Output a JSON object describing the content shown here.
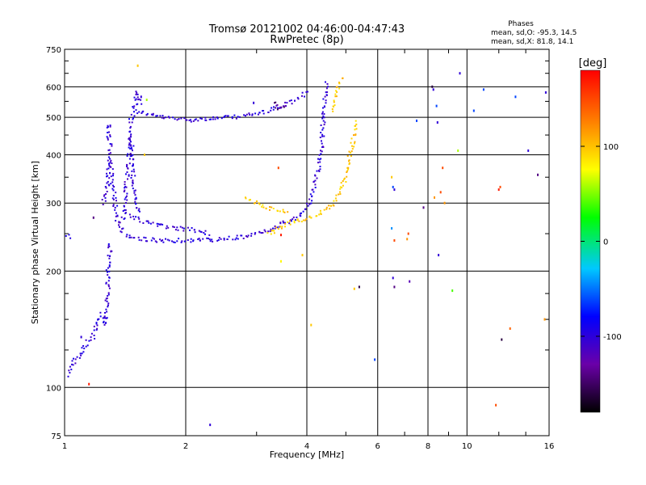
{
  "chart_data": {
    "type": "scatter",
    "title": "Tromsø 20121002 04:46:00-04:47:43",
    "subtitle": "RwPretec (8p)",
    "xlabel": "Frequency [MHz]",
    "ylabel": "Stationary phase Virtual Height [km]",
    "x_scale": "log",
    "y_scale": "log",
    "xlim": [
      1,
      16
    ],
    "ylim": [
      75,
      750
    ],
    "x_ticks": [
      1,
      2,
      4,
      6,
      8,
      10,
      16
    ],
    "y_ticks": [
      75,
      100,
      200,
      300,
      400,
      500,
      600,
      750
    ],
    "grid": true,
    "stats": {
      "heading": "Phases",
      "line_o": "mean, sd,O: -95.3, 14.5",
      "line_x": "mean, sd,X: 81.8, 14.1"
    },
    "colorbar": {
      "label": "[deg]",
      "range": [
        -180,
        180
      ],
      "ticks": [
        100,
        0,
        -100
      ],
      "colormap": [
        "#000000",
        "#6a00a8",
        "#0000ff",
        "#00c8ff",
        "#00ff00",
        "#ffff00",
        "#ff8000",
        "#ff0000"
      ]
    },
    "traces": [
      {
        "points": [
          [
            1.5,
            520
          ],
          [
            1.6,
            510
          ],
          [
            1.75,
            500
          ],
          [
            1.9,
            495
          ],
          [
            2.05,
            493
          ],
          [
            2.2,
            495
          ],
          [
            2.4,
            497
          ],
          [
            2.6,
            500
          ],
          [
            2.8,
            505
          ],
          [
            3.0,
            510
          ],
          [
            3.2,
            520
          ],
          [
            3.45,
            535
          ],
          [
            3.7,
            550
          ],
          [
            3.9,
            570
          ],
          [
            4.0,
            590
          ]
        ],
        "phase": -100
      },
      {
        "points": [
          [
            1.45,
            470
          ],
          [
            1.5,
            545
          ],
          [
            1.52,
            580
          ],
          [
            1.55,
            540
          ]
        ],
        "phase": -100
      },
      {
        "points": [
          [
            1.3,
            380
          ],
          [
            1.32,
            330
          ],
          [
            1.34,
            290
          ],
          [
            1.36,
            265
          ],
          [
            1.4,
            250
          ],
          [
            1.5,
            243
          ],
          [
            1.7,
            240
          ],
          [
            2.0,
            240
          ],
          [
            2.4,
            241
          ],
          [
            2.8,
            245
          ],
          [
            3.2,
            255
          ],
          [
            3.5,
            265
          ],
          [
            3.8,
            275
          ],
          [
            4.0,
            290
          ],
          [
            4.15,
            320
          ],
          [
            4.25,
            360
          ],
          [
            4.35,
            420
          ],
          [
            4.4,
            500
          ],
          [
            4.45,
            580
          ],
          [
            4.5,
            620
          ]
        ],
        "phase": -100
      },
      {
        "points": [
          [
            1.25,
            300
          ],
          [
            1.28,
            340
          ],
          [
            1.3,
            420
          ],
          [
            1.28,
            470
          ],
          [
            1.32,
            480
          ]
        ],
        "phase": -100
      },
      {
        "points": [
          [
            1.4,
            270
          ],
          [
            1.42,
            320
          ],
          [
            1.44,
            380
          ],
          [
            1.45,
            420
          ],
          [
            1.46,
            460
          ],
          [
            1.48,
            350
          ],
          [
            1.5,
            300
          ],
          [
            1.55,
            280
          ]
        ],
        "phase": -100
      },
      {
        "points": [
          [
            1.45,
            280
          ],
          [
            1.55,
            270
          ],
          [
            1.65,
            265
          ],
          [
            1.75,
            262
          ],
          [
            1.9,
            258
          ],
          [
            2.1,
            255
          ],
          [
            2.3,
            250
          ]
        ],
        "phase": -100
      },
      {
        "points": [
          [
            3.2,
            250
          ],
          [
            3.5,
            262
          ],
          [
            3.8,
            270
          ],
          [
            4.1,
            276
          ],
          [
            4.4,
            285
          ],
          [
            4.7,
            300
          ],
          [
            4.9,
            330
          ],
          [
            5.05,
            370
          ],
          [
            5.15,
            410
          ],
          [
            5.25,
            450
          ],
          [
            5.3,
            490
          ]
        ],
        "phase": 100
      },
      {
        "points": [
          [
            2.8,
            310
          ],
          [
            3.0,
            300
          ],
          [
            3.2,
            292
          ],
          [
            3.4,
            287
          ],
          [
            3.6,
            285
          ]
        ],
        "phase": 100
      },
      {
        "points": [
          [
            4.6,
            520
          ],
          [
            4.7,
            560
          ],
          [
            4.8,
            600
          ],
          [
            4.9,
            630
          ],
          [
            4.95,
            640
          ]
        ],
        "phase": 100
      },
      {
        "points": [
          [
            3.3,
            545
          ],
          [
            3.4,
            530
          ],
          [
            3.55,
            540
          ]
        ],
        "phase": -140
      },
      {
        "points": [
          [
            1.02,
            108
          ],
          [
            1.04,
            112
          ],
          [
            1.06,
            118
          ],
          [
            1.1,
            122
          ],
          [
            1.12,
            128
          ],
          [
            1.15,
            132
          ],
          [
            1.18,
            135
          ],
          [
            1.2,
            145
          ],
          [
            1.22,
            150
          ],
          [
            1.24,
            155
          ],
          [
            1.26,
            145
          ],
          [
            1.28,
            175
          ],
          [
            1.28,
            195
          ],
          [
            1.29,
            210
          ],
          [
            1.3,
            240
          ]
        ],
        "phase": -100
      },
      {
        "points": [
          [
            1.02,
            248
          ],
          [
            1.05,
            245
          ]
        ],
        "phase": -100
      }
    ],
    "scatter": [
      {
        "x": 1.52,
        "y": 680,
        "phase": 100
      },
      {
        "x": 1.55,
        "y": 565,
        "phase": -100
      },
      {
        "x": 1.6,
        "y": 555,
        "phase": 60
      },
      {
        "x": 1.58,
        "y": 400,
        "phase": 100
      },
      {
        "x": 1.15,
        "y": 102,
        "phase": 170
      },
      {
        "x": 1.1,
        "y": 135,
        "phase": -100
      },
      {
        "x": 1.18,
        "y": 275,
        "phase": -140
      },
      {
        "x": 2.3,
        "y": 80,
        "phase": -100
      },
      {
        "x": 2.95,
        "y": 545,
        "phase": -100
      },
      {
        "x": 3.4,
        "y": 370,
        "phase": 150
      },
      {
        "x": 3.45,
        "y": 248,
        "phase": 170
      },
      {
        "x": 3.45,
        "y": 212,
        "phase": 80
      },
      {
        "x": 3.9,
        "y": 220,
        "phase": 100
      },
      {
        "x": 4.1,
        "y": 145,
        "phase": 100
      },
      {
        "x": 5.25,
        "y": 180,
        "phase": 100
      },
      {
        "x": 5.4,
        "y": 182,
        "phase": -160
      },
      {
        "x": 5.9,
        "y": 118,
        "phase": -60
      },
      {
        "x": 6.5,
        "y": 350,
        "phase": 100
      },
      {
        "x": 6.55,
        "y": 330,
        "phase": -60
      },
      {
        "x": 6.6,
        "y": 325,
        "phase": -100
      },
      {
        "x": 6.5,
        "y": 258,
        "phase": -40
      },
      {
        "x": 6.6,
        "y": 240,
        "phase": 150
      },
      {
        "x": 6.55,
        "y": 192,
        "phase": -100
      },
      {
        "x": 6.6,
        "y": 182,
        "phase": -140
      },
      {
        "x": 7.1,
        "y": 242,
        "phase": 120
      },
      {
        "x": 7.15,
        "y": 250,
        "phase": 150
      },
      {
        "x": 7.2,
        "y": 188,
        "phase": -120
      },
      {
        "x": 7.5,
        "y": 490,
        "phase": -60
      },
      {
        "x": 7.8,
        "y": 292,
        "phase": -140
      },
      {
        "x": 8.2,
        "y": 600,
        "phase": -160
      },
      {
        "x": 8.25,
        "y": 590,
        "phase": -100
      },
      {
        "x": 8.3,
        "y": 310,
        "phase": 120
      },
      {
        "x": 8.4,
        "y": 535,
        "phase": -60
      },
      {
        "x": 8.45,
        "y": 485,
        "phase": -100
      },
      {
        "x": 8.6,
        "y": 320,
        "phase": 150
      },
      {
        "x": 8.5,
        "y": 220,
        "phase": -100
      },
      {
        "x": 8.7,
        "y": 370,
        "phase": 150
      },
      {
        "x": 8.8,
        "y": 300,
        "phase": 120
      },
      {
        "x": 9.2,
        "y": 178,
        "phase": 40
      },
      {
        "x": 9.5,
        "y": 410,
        "phase": 60
      },
      {
        "x": 9.6,
        "y": 650,
        "phase": -100
      },
      {
        "x": 10.4,
        "y": 520,
        "phase": -60
      },
      {
        "x": 11.0,
        "y": 590,
        "phase": -60
      },
      {
        "x": 11.8,
        "y": 90,
        "phase": 150
      },
      {
        "x": 12.0,
        "y": 325,
        "phase": 170
      },
      {
        "x": 12.1,
        "y": 330,
        "phase": 150
      },
      {
        "x": 12.2,
        "y": 133,
        "phase": -160
      },
      {
        "x": 12.8,
        "y": 142,
        "phase": 140
      },
      {
        "x": 13.2,
        "y": 565,
        "phase": -60
      },
      {
        "x": 14.2,
        "y": 410,
        "phase": -100
      },
      {
        "x": 15.0,
        "y": 355,
        "phase": -140
      },
      {
        "x": 15.6,
        "y": 150,
        "phase": 120
      },
      {
        "x": 15.7,
        "y": 580,
        "phase": -100
      }
    ]
  }
}
